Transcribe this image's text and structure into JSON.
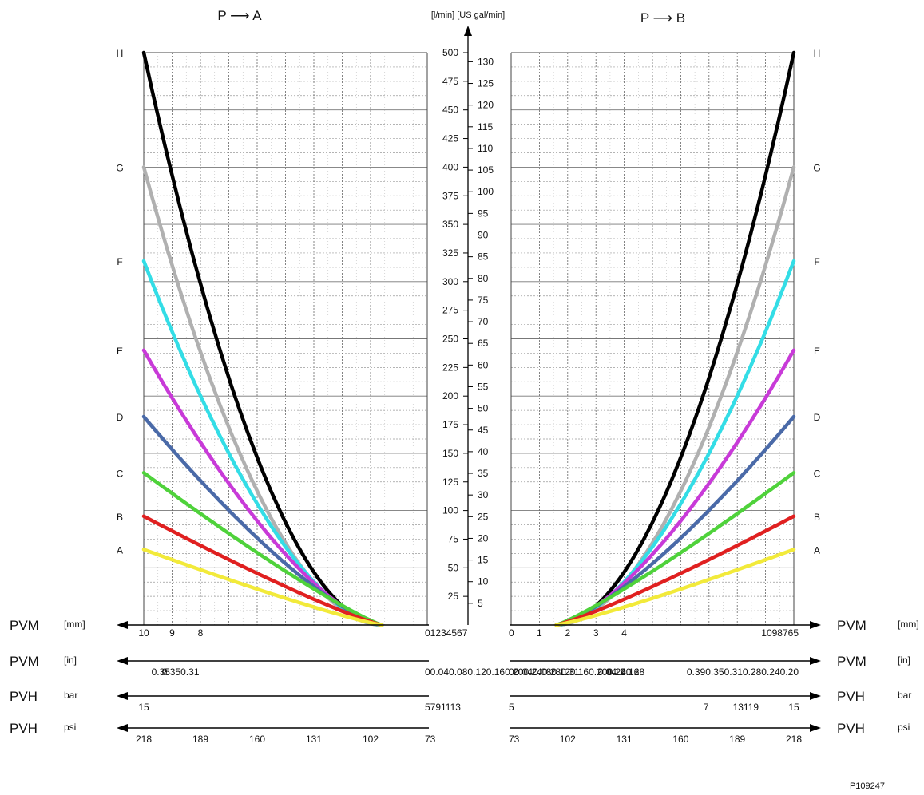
{
  "chart_data": {
    "type": "line",
    "figure_id": "P109247",
    "colors": {
      "A": "#f2ea3a",
      "B": "#e02020",
      "C": "#4fd23b",
      "D": "#4a6aa8",
      "E": "#c83ad8",
      "F": "#33dde6",
      "G": "#b0b0b0",
      "H": "#000000"
    },
    "flow_axis": {
      "label": "[l/min] [US gal/min]",
      "lmin_ticks": [
        "500",
        "475",
        "450",
        "425",
        "400",
        "375",
        "350",
        "325",
        "300",
        "275",
        "250",
        "225",
        "200",
        "175",
        "150",
        "125",
        "100",
        "75",
        "50",
        "25"
      ],
      "gal_ticks": [
        "130",
        "125",
        "120",
        "115",
        "110",
        "105",
        "100",
        "95",
        "90",
        "85",
        "80",
        "75",
        "70",
        "65",
        "60",
        "55",
        "50",
        "45",
        "40",
        "35",
        "30",
        "25",
        "20",
        "15",
        "10",
        "5"
      ],
      "ylim": [
        0,
        500
      ]
    },
    "panels": [
      {
        "title": "P ⟶ A",
        "side": "left",
        "curve_labels": [
          "H",
          "G",
          "F",
          "E",
          "D",
          "C",
          "B",
          "A"
        ],
        "pvm_mm": {
          "name": "PVM",
          "unit": "[mm]",
          "labels": [
            {
              "x": 10,
              "text": "10"
            },
            {
              "x": 9,
              "text": "9"
            },
            {
              "x": 8,
              "text": "8"
            },
            {
              "x": 0,
              "text": "01234567"
            }
          ]
        },
        "pvm_in": {
          "name": "PVM",
          "unit": "[in]",
          "labels": [
            {
              "x": 9.4,
              "text": "0.35"
            },
            {
              "x": 8.7,
              "text": "0.350.31"
            },
            {
              "x": 0,
              "text": "00.040.080.120.160.200.240.280.31"
            }
          ]
        },
        "pvh_bar": {
          "name": "PVH",
          "unit": "bar",
          "labels": [
            {
              "x": 10,
              "text": "15"
            },
            {
              "x": 0,
              "text": "5791113"
            }
          ]
        },
        "pvh_psi": {
          "name": "PVH",
          "unit": "psi",
          "labels": [
            {
              "x": 10,
              "text": "218"
            },
            {
              "x": 8,
              "text": "189"
            },
            {
              "x": 6,
              "text": "160"
            },
            {
              "x": 4,
              "text": "131"
            },
            {
              "x": 2,
              "text": "102"
            },
            {
              "x": 0,
              "text": "73"
            }
          ]
        },
        "series": [
          {
            "name": "H",
            "max_flow": 500
          },
          {
            "name": "G",
            "max_flow": 400
          },
          {
            "name": "F",
            "max_flow": 318
          },
          {
            "name": "E",
            "max_flow": 240
          },
          {
            "name": "D",
            "max_flow": 182
          },
          {
            "name": "C",
            "max_flow": 133
          },
          {
            "name": "B",
            "max_flow": 95
          },
          {
            "name": "A",
            "max_flow": 66
          }
        ],
        "x_zero": 1.6,
        "x_max": 10
      },
      {
        "title": "P ⟶ B",
        "side": "right",
        "curve_labels": [
          "H",
          "G",
          "F",
          "E",
          "D",
          "C",
          "B",
          "A"
        ],
        "pvm_mm": {
          "name": "PVM",
          "unit": "[mm]",
          "labels": [
            {
              "x": 0,
              "text": "0"
            },
            {
              "x": 1,
              "text": "1"
            },
            {
              "x": 2,
              "text": "2"
            },
            {
              "x": 3,
              "text": "3"
            },
            {
              "x": 4,
              "text": "4"
            },
            {
              "x": 10,
              "text": "1098765"
            }
          ]
        },
        "pvm_in": {
          "name": "PVM",
          "unit": "[in]",
          "labels": [
            {
              "x": 0,
              "text": "00.040.080.120.160.200.240.28"
            },
            {
              "x": 3.4,
              "text": "0.04"
            },
            {
              "x": 3.7,
              "text": "0.12"
            },
            {
              "x": 4.2,
              "text": "0.16"
            },
            {
              "x": 10,
              "text": "0.390.350.310.280.240.20"
            }
          ]
        },
        "pvh_bar": {
          "name": "PVH",
          "unit": "bar",
          "labels": [
            {
              "x": 0,
              "text": "5"
            },
            {
              "x": 6.9,
              "text": "7"
            },
            {
              "x": 8.3,
              "text": "13119"
            },
            {
              "x": 10,
              "text": "15"
            }
          ]
        },
        "pvh_psi": {
          "name": "PVH",
          "unit": "psi",
          "labels": [
            {
              "x": 0,
              "text": "73"
            },
            {
              "x": 2,
              "text": "102"
            },
            {
              "x": 4,
              "text": "131"
            },
            {
              "x": 6,
              "text": "160"
            },
            {
              "x": 8,
              "text": "189"
            },
            {
              "x": 10,
              "text": "218"
            }
          ]
        },
        "series": [
          {
            "name": "H",
            "max_flow": 500
          },
          {
            "name": "G",
            "max_flow": 400
          },
          {
            "name": "F",
            "max_flow": 318
          },
          {
            "name": "E",
            "max_flow": 240
          },
          {
            "name": "D",
            "max_flow": 182
          },
          {
            "name": "C",
            "max_flow": 133
          },
          {
            "name": "B",
            "max_flow": 95
          },
          {
            "name": "A",
            "max_flow": 66
          }
        ],
        "x_zero": 1.6,
        "x_max": 10
      }
    ]
  }
}
